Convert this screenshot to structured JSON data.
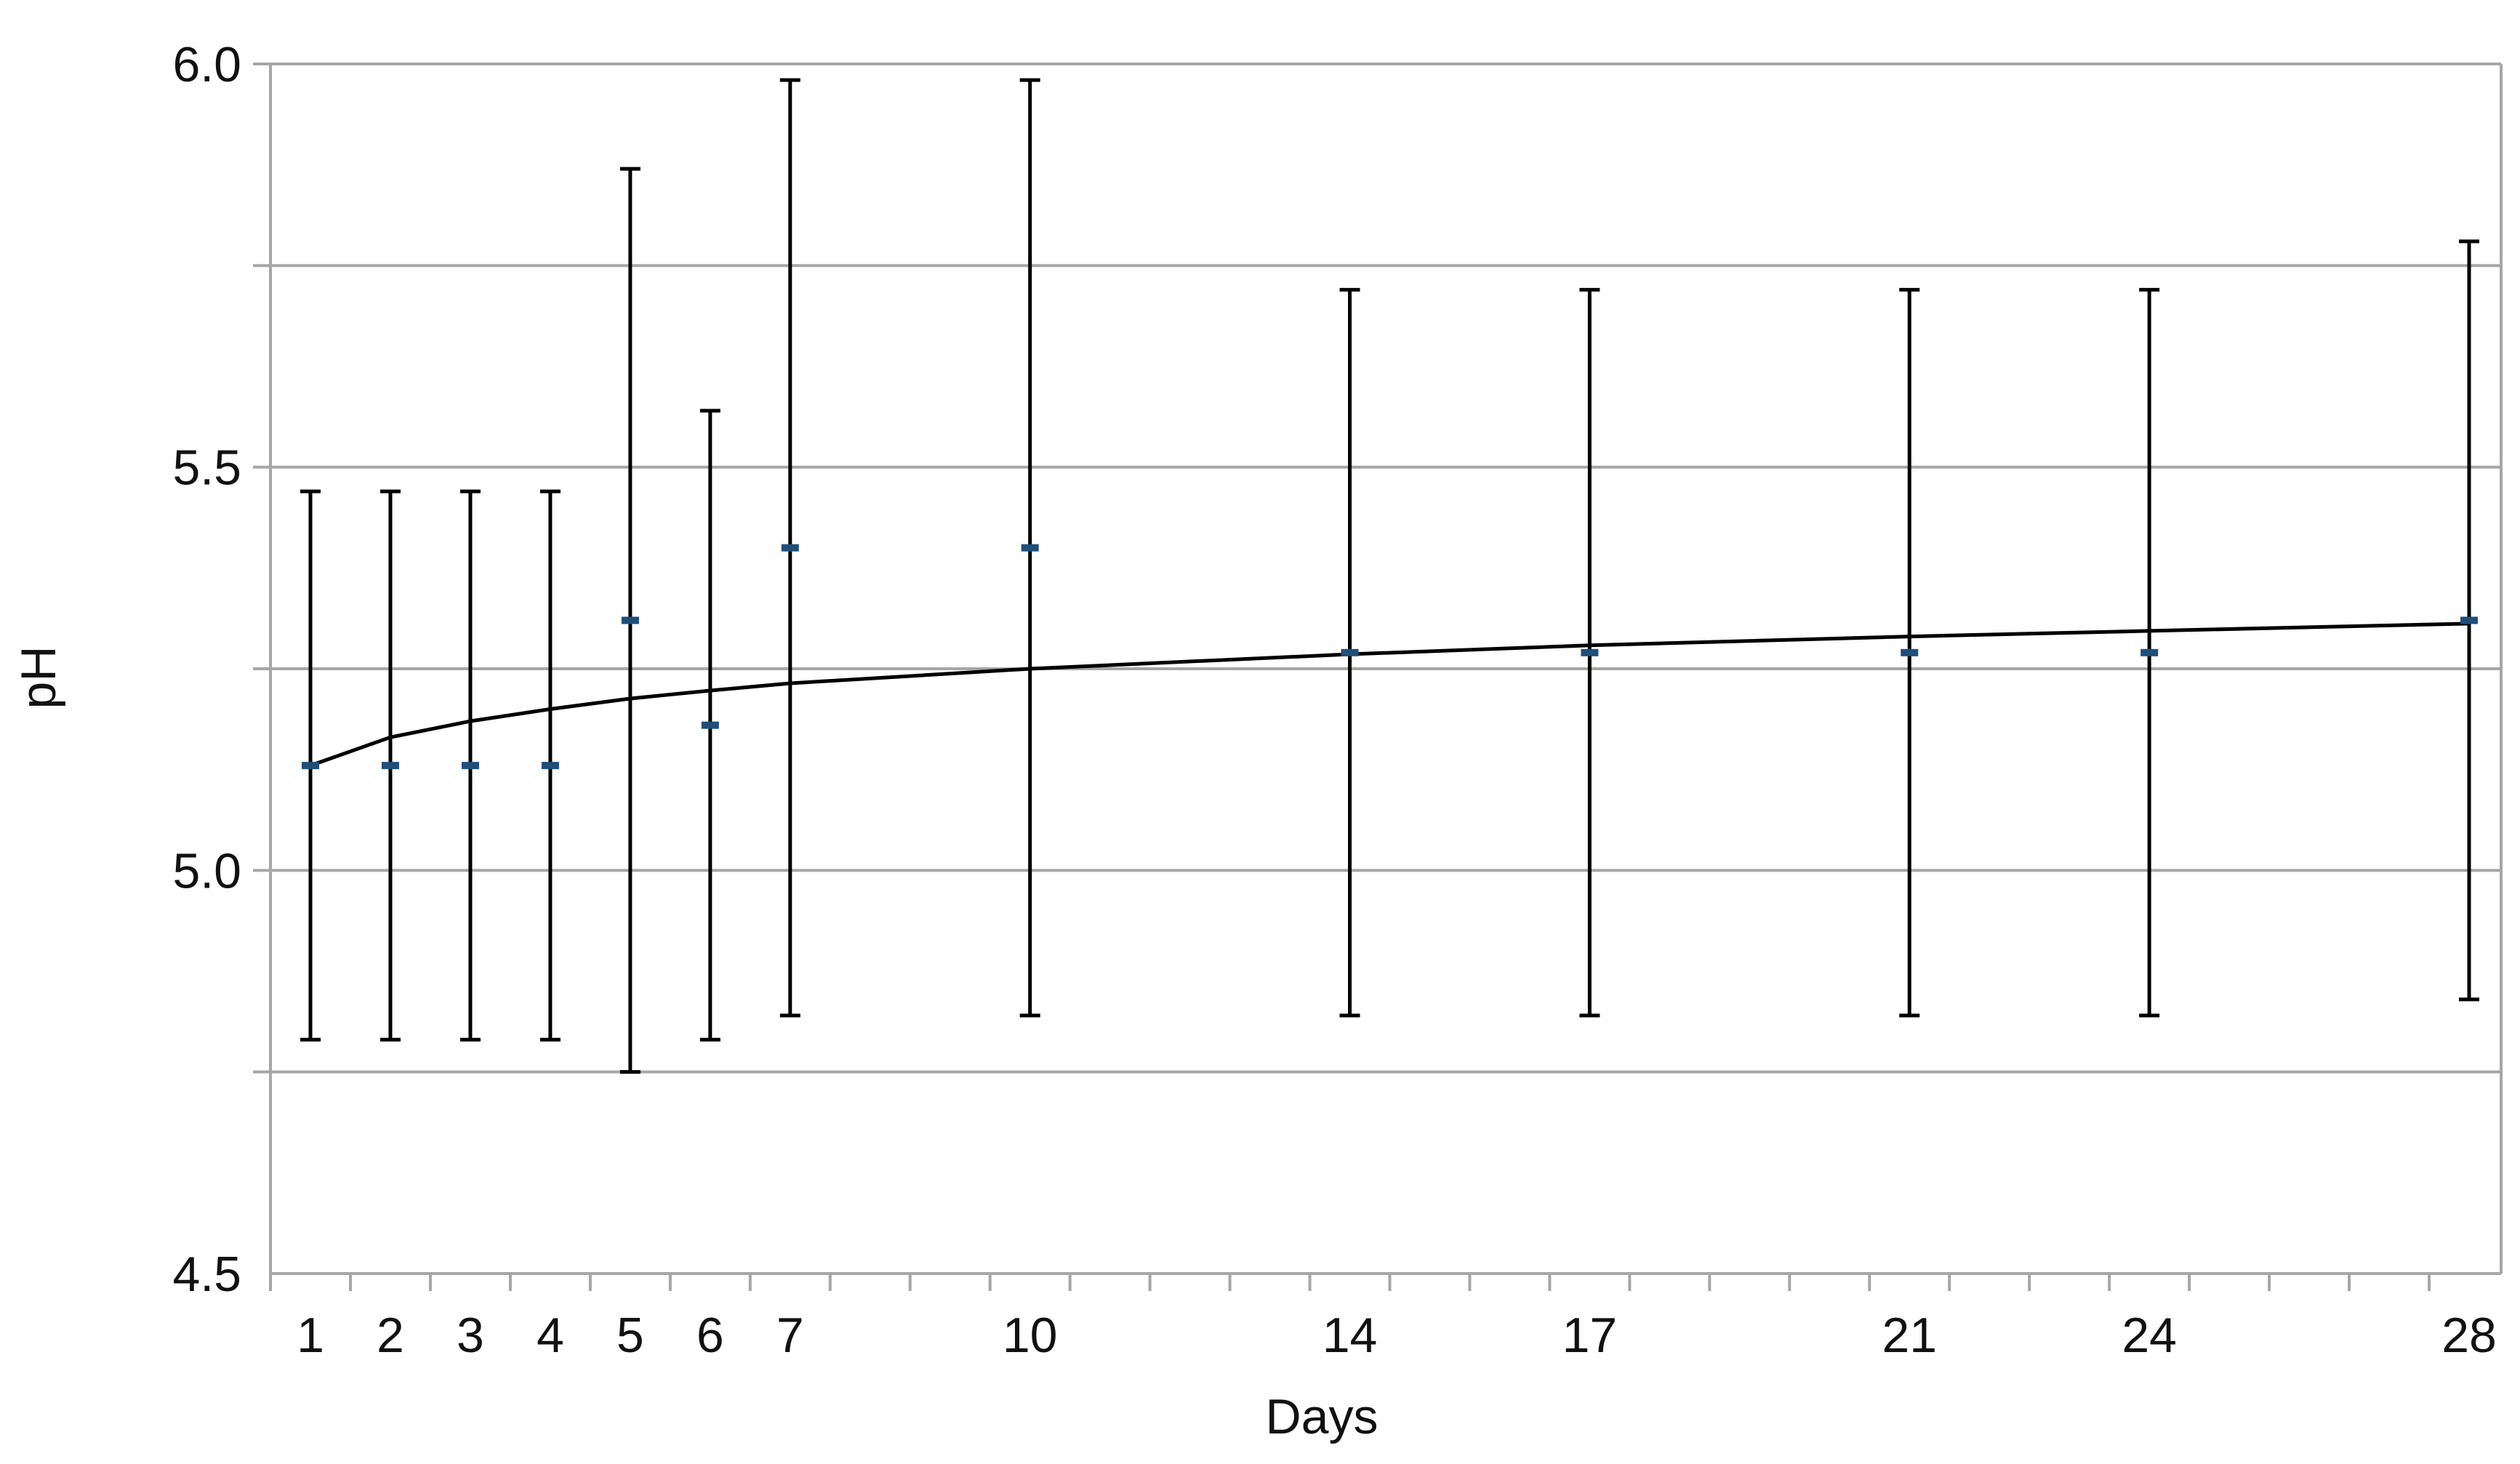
{
  "chart_data": {
    "type": "scatter",
    "title": "",
    "xlabel": "Days",
    "ylabel": "pH",
    "x_ticks": [
      1,
      2,
      3,
      4,
      5,
      6,
      7,
      10,
      14,
      17,
      21,
      24,
      28
    ],
    "x_range": [
      0.5,
      28.4
    ],
    "ylim": [
      4.5,
      6.0
    ],
    "y_ticks": [
      4.5,
      5.0,
      5.5,
      6.0
    ],
    "y_tick_labels": [
      "4.5",
      "5.0",
      "5.5",
      "6.0"
    ],
    "y_gridlines": [
      4.75,
      5.0,
      5.25,
      5.5,
      5.75,
      6.0
    ],
    "grid": true,
    "legend": "none",
    "series": [
      {
        "marker": "dash",
        "color": "#1f4e79",
        "points": [
          {
            "x": 1,
            "y": 5.13,
            "err_low": 4.79,
            "err_high": 5.47
          },
          {
            "x": 2,
            "y": 5.13,
            "err_low": 4.79,
            "err_high": 5.47
          },
          {
            "x": 3,
            "y": 5.13,
            "err_low": 4.79,
            "err_high": 5.47
          },
          {
            "x": 4,
            "y": 5.13,
            "err_low": 4.79,
            "err_high": 5.47
          },
          {
            "x": 5,
            "y": 5.31,
            "err_low": 4.75,
            "err_high": 5.87
          },
          {
            "x": 6,
            "y": 5.18,
            "err_low": 4.79,
            "err_high": 5.57
          },
          {
            "x": 7,
            "y": 5.4,
            "err_low": 4.82,
            "err_high": 5.98
          },
          {
            "x": 10,
            "y": 5.4,
            "err_low": 4.82,
            "err_high": 5.98
          },
          {
            "x": 14,
            "y": 5.27,
            "err_low": 4.82,
            "err_high": 5.72
          },
          {
            "x": 17,
            "y": 5.27,
            "err_low": 4.82,
            "err_high": 5.72
          },
          {
            "x": 21,
            "y": 5.27,
            "err_low": 4.82,
            "err_high": 5.72
          },
          {
            "x": 24,
            "y": 5.27,
            "err_low": 4.82,
            "err_high": 5.72
          },
          {
            "x": 28,
            "y": 5.31,
            "err_low": 4.84,
            "err_high": 5.78
          }
        ]
      }
    ],
    "trendline": {
      "type": "logarithmic",
      "color": "#000000",
      "points": [
        {
          "x": 1,
          "y": 5.13
        },
        {
          "x": 2,
          "y": 5.165
        },
        {
          "x": 3,
          "y": 5.185
        },
        {
          "x": 4,
          "y": 5.2
        },
        {
          "x": 5,
          "y": 5.213
        },
        {
          "x": 6,
          "y": 5.223
        },
        {
          "x": 7,
          "y": 5.232
        },
        {
          "x": 10,
          "y": 5.25
        },
        {
          "x": 14,
          "y": 5.268
        },
        {
          "x": 17,
          "y": 5.279
        },
        {
          "x": 21,
          "y": 5.29
        },
        {
          "x": 24,
          "y": 5.297
        },
        {
          "x": 28,
          "y": 5.306
        }
      ]
    }
  }
}
